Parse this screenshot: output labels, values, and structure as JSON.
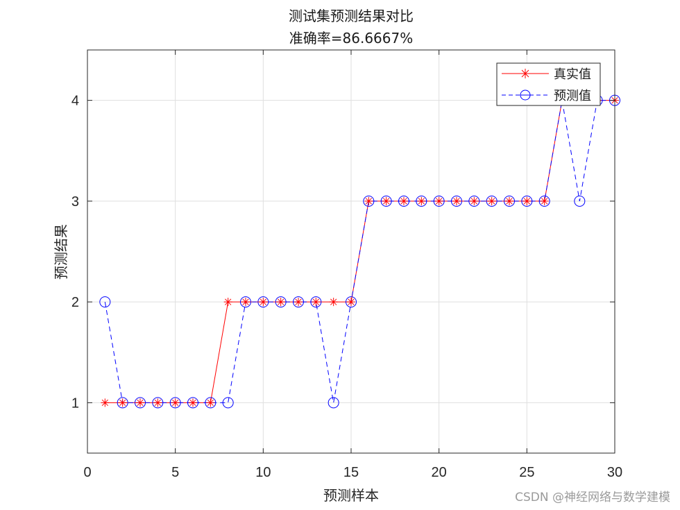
{
  "chart_data": {
    "type": "line",
    "title": "测试集预测结果对比",
    "subtitle": "准确率=86.6667%",
    "xlabel": "预测样本",
    "ylabel": "预测结果",
    "xlim": [
      0,
      30
    ],
    "ylim": [
      0.5,
      4.5
    ],
    "xticks": [
      0,
      5,
      10,
      15,
      20,
      25,
      30
    ],
    "yticks": [
      1,
      2,
      3,
      4
    ],
    "grid": true,
    "legend_position": "northeast",
    "x": [
      1,
      2,
      3,
      4,
      5,
      6,
      7,
      8,
      9,
      10,
      11,
      12,
      13,
      14,
      15,
      16,
      17,
      18,
      19,
      20,
      21,
      22,
      23,
      24,
      25,
      26,
      27,
      28,
      29,
      30
    ],
    "series": [
      {
        "name": "真实值",
        "color": "#ff0000",
        "line_style": "solid",
        "marker": "asterisk",
        "values": [
          1,
          1,
          1,
          1,
          1,
          1,
          1,
          2,
          2,
          2,
          2,
          2,
          2,
          2,
          2,
          3,
          3,
          3,
          3,
          3,
          3,
          3,
          3,
          3,
          3,
          3,
          4,
          4,
          4,
          4
        ]
      },
      {
        "name": "预测值",
        "color": "#0000ff",
        "line_style": "dashed",
        "marker": "circle",
        "values": [
          2,
          1,
          1,
          1,
          1,
          1,
          1,
          1,
          2,
          2,
          2,
          2,
          2,
          1,
          2,
          3,
          3,
          3,
          3,
          3,
          3,
          3,
          3,
          3,
          3,
          3,
          4,
          3,
          4,
          4
        ]
      }
    ]
  },
  "watermark": "CSDN @神经网络与数学建模"
}
